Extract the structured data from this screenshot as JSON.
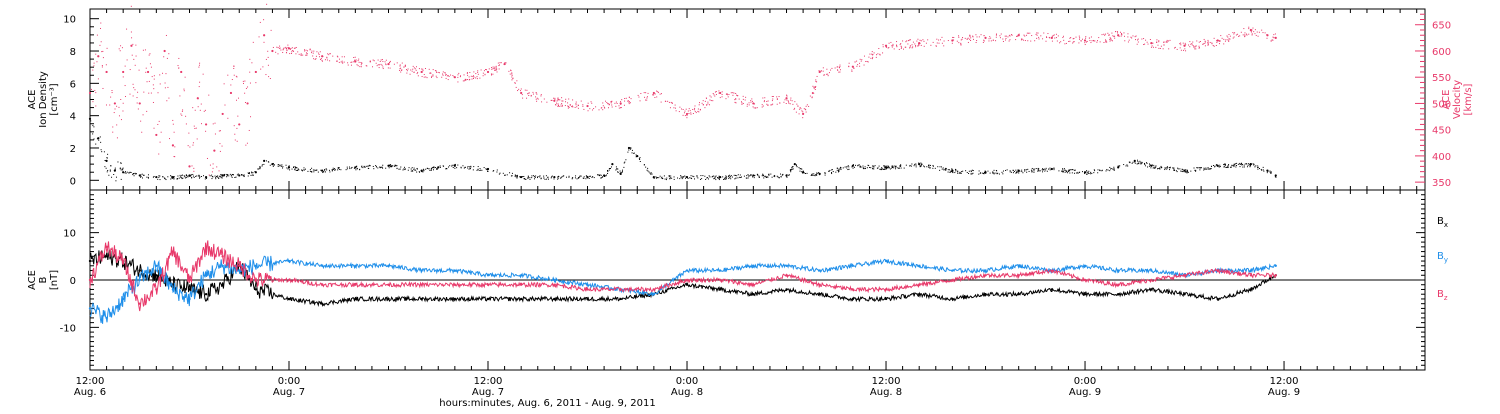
{
  "colors": {
    "black": "#000000",
    "red": "#e8396a",
    "blue": "#1f8fea"
  },
  "time_axis": {
    "xlabel": "hours:minutes, Aug.  6, 2011 - Aug.  9, 2011",
    "range_hours": [
      0,
      80.5
    ],
    "ticks": [
      {
        "hour": 0,
        "label": "12:00",
        "sub": "Aug. 6"
      },
      {
        "hour": 12,
        "label": "0:00",
        "sub": "Aug. 7"
      },
      {
        "hour": 24,
        "label": "12:00",
        "sub": "Aug. 7"
      },
      {
        "hour": 36,
        "label": "0:00",
        "sub": "Aug. 8"
      },
      {
        "hour": 48,
        "label": "12:00",
        "sub": "Aug. 8"
      },
      {
        "hour": 60,
        "label": "0:00",
        "sub": "Aug. 9"
      },
      {
        "hour": 72,
        "label": "12:00",
        "sub": "Aug. 9"
      }
    ]
  },
  "chart_data": [
    {
      "type": "scatter",
      "panel": "plasma",
      "ylabel_lines": [
        "ACE",
        "Ion Density",
        "[cm⁻³]"
      ],
      "ylim": [
        -0.6,
        10.6
      ],
      "yticks": [
        0,
        2,
        4,
        6,
        8,
        10
      ],
      "y2label_lines": [
        "ACE",
        "Velocity",
        "[km/s]"
      ],
      "y2lim": [
        335,
        680
      ],
      "y2ticks": [
        350,
        400,
        450,
        500,
        550,
        600,
        650
      ],
      "series": [
        {
          "name": "",
          "color": "#000000",
          "axis": "left",
          "x": [
            0,
            0.5,
            1,
            1.5,
            2,
            3,
            4,
            5,
            6,
            7,
            8,
            9,
            10,
            10.5,
            11,
            12,
            14,
            16,
            18,
            20,
            21,
            22,
            24,
            26,
            28,
            30,
            31,
            31.5,
            32,
            32.5,
            33,
            34,
            36,
            38,
            40,
            42,
            42.5,
            43,
            44,
            46,
            48,
            50,
            52,
            54,
            56,
            58,
            60,
            62,
            63,
            64,
            66,
            68,
            70,
            71,
            71.5
          ],
          "values": [
            3.8,
            2.6,
            1.2,
            0.6,
            0.5,
            0.3,
            0.2,
            0.2,
            0.3,
            0.2,
            0.3,
            0.3,
            0.5,
            1.2,
            1.0,
            0.8,
            0.6,
            0.8,
            0.9,
            0.6,
            0.8,
            0.9,
            0.7,
            0.2,
            0.2,
            0.2,
            0.3,
            1.0,
            0.4,
            2.0,
            1.5,
            0.2,
            0.2,
            0.2,
            0.3,
            0.3,
            1.0,
            0.5,
            0.4,
            0.9,
            0.8,
            1.0,
            0.6,
            0.5,
            0.6,
            0.7,
            0.5,
            0.8,
            1.2,
            0.9,
            0.6,
            0.9,
            1.0,
            0.6,
            0.3
          ]
        },
        {
          "name": "",
          "color": "#e8396a",
          "axis": "right",
          "x": [
            0,
            0.5,
            1,
            1.5,
            2,
            2.5,
            3,
            3.5,
            4,
            4.5,
            5,
            5.5,
            6,
            6.5,
            7,
            7.5,
            8,
            8.5,
            9,
            9.5,
            10,
            10.5,
            11,
            12,
            14,
            16,
            18,
            20,
            22,
            24,
            25,
            26,
            28,
            30,
            32,
            34,
            36,
            38,
            40,
            42,
            43,
            44,
            46,
            48,
            50,
            52,
            54,
            56,
            58,
            60,
            62,
            64,
            66,
            68,
            70,
            71,
            71.5
          ],
          "values": [
            520,
            590,
            560,
            500,
            560,
            610,
            500,
            560,
            440,
            600,
            420,
            560,
            380,
            510,
            460,
            410,
            480,
            520,
            460,
            500,
            560,
            630,
            600,
            605,
            590,
            580,
            575,
            560,
            550,
            560,
            575,
            520,
            505,
            495,
            500,
            520,
            480,
            520,
            500,
            510,
            480,
            560,
            570,
            610,
            615,
            620,
            625,
            630,
            625,
            620,
            630,
            615,
            610,
            620,
            640,
            630,
            625
          ]
        }
      ]
    },
    {
      "type": "line",
      "panel": "magnetic",
      "ylabel_lines": [
        "ACE",
        "B",
        "[nT]"
      ],
      "ylim": [
        -19,
        19
      ],
      "yticks": [
        -10,
        0,
        10
      ],
      "zero_line": true,
      "series": [
        {
          "name": "B",
          "subscript": "x",
          "color": "#000000",
          "x": [
            0,
            1,
            2,
            3,
            4,
            5,
            6,
            7,
            8,
            9,
            10,
            12,
            14,
            16,
            18,
            20,
            22,
            24,
            26,
            28,
            30,
            32,
            34,
            36,
            38,
            40,
            42,
            44,
            46,
            48,
            50,
            52,
            54,
            56,
            58,
            60,
            62,
            64,
            66,
            68,
            70,
            71.5
          ],
          "values": [
            4,
            5,
            4,
            2,
            1,
            -1,
            -2,
            -3,
            -1,
            3,
            -2,
            -4,
            -5,
            -4,
            -4,
            -4,
            -4,
            -4,
            -4,
            -4,
            -4,
            -4,
            -3,
            -1,
            -2,
            -3,
            -2,
            -3,
            -4,
            -4,
            -3,
            -4,
            -3,
            -3,
            -2,
            -3,
            -3,
            -2,
            -3,
            -4,
            -2,
            1
          ]
        },
        {
          "name": "B",
          "subscript": "y",
          "color": "#1f8fea",
          "x": [
            0,
            1,
            2,
            3,
            4,
            5,
            6,
            7,
            8,
            9,
            10,
            12,
            14,
            16,
            18,
            20,
            22,
            24,
            26,
            28,
            30,
            32,
            34,
            36,
            38,
            40,
            42,
            44,
            46,
            48,
            50,
            52,
            54,
            56,
            58,
            60,
            62,
            64,
            66,
            68,
            70,
            71.5
          ],
          "values": [
            -6,
            -8,
            -4,
            0,
            3,
            -2,
            -4,
            1,
            3,
            2,
            3,
            4,
            3,
            3,
            3,
            2,
            2,
            1,
            1,
            0,
            -1,
            -2,
            -3,
            2,
            2,
            3,
            3,
            2,
            3,
            4,
            3,
            2,
            2,
            3,
            2,
            3,
            2,
            2,
            1,
            2,
            2,
            3
          ]
        },
        {
          "name": "B",
          "subscript": "z",
          "color": "#e8396a",
          "x": [
            0,
            1,
            2,
            3,
            4,
            5,
            6,
            7,
            8,
            9,
            10,
            12,
            14,
            16,
            18,
            20,
            22,
            24,
            26,
            28,
            30,
            32,
            34,
            36,
            38,
            40,
            42,
            44,
            46,
            48,
            50,
            52,
            54,
            56,
            58,
            60,
            62,
            64,
            66,
            68,
            70,
            71.5
          ],
          "values": [
            0,
            7,
            4,
            -5,
            -2,
            6,
            0,
            7,
            5,
            3,
            0,
            0,
            -1,
            -1,
            -1,
            -1,
            -1,
            -1,
            -1,
            -1,
            -2,
            -2,
            -2,
            0,
            0,
            -1,
            1,
            -1,
            -2,
            -2,
            -1,
            0,
            1,
            1,
            2,
            0,
            -1,
            0,
            1,
            2,
            1,
            1
          ]
        }
      ]
    }
  ]
}
